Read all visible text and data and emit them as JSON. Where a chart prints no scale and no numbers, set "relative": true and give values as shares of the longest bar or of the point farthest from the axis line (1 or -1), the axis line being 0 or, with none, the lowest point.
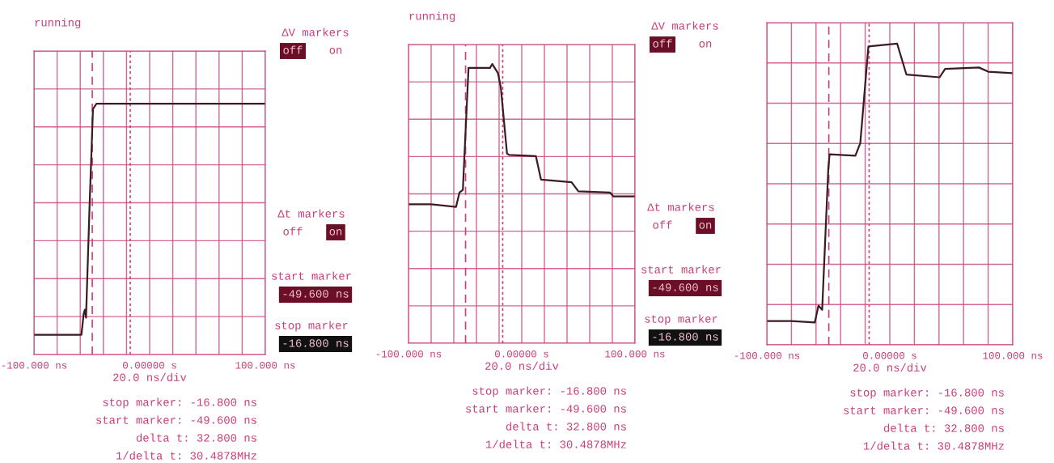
{
  "chart_data": [
    {
      "type": "line",
      "title": "running",
      "xlabel": "20.0 ns/div",
      "relative": true,
      "grid": true,
      "tick_labels": "x",
      "xlim": [
        -100,
        100
      ],
      "xticks": [
        {
          "value": -100,
          "label": "-100.000 ns"
        },
        {
          "value": -80,
          "label": null
        },
        {
          "value": -60,
          "label": null
        },
        {
          "value": -40,
          "label": null
        },
        {
          "value": -20,
          "label": null
        },
        {
          "value": 0,
          "label": "0.00000 s"
        },
        {
          "value": 20,
          "label": null
        },
        {
          "value": 40,
          "label": null
        },
        {
          "value": 60,
          "label": null
        },
        {
          "value": 80,
          "label": null
        },
        {
          "value": 100,
          "label": "100.000 ns"
        }
      ],
      "series": [
        {
          "color": "#3a1c22",
          "x": [
            -100,
            -80,
            -60,
            -59,
            -57,
            -56,
            -55,
            -52,
            -49,
            -46,
            -20,
            20,
            60,
            100
          ],
          "values": [
            -1,
            -1,
            -1,
            -1,
            -0.84,
            -0.81,
            -0.87,
            -0.04,
            0.71,
            0.75,
            0.75,
            0.75,
            0.75,
            0.75
          ]
        }
      ],
      "ref_lines": [
        {
          "axis": "x",
          "value": -49.6,
          "line_style": "dashed",
          "color": "#c8407a"
        },
        {
          "axis": "x",
          "value": -16.8,
          "line_style": "dotted",
          "color": "#c8407a"
        }
      ],
      "annotations": [
        "ΔV markers",
        "off",
        "on",
        "Δt markers",
        "off",
        "on",
        "start marker",
        "-49.600 ns",
        "stop marker",
        "-16.800 ns",
        "stop marker: -16.800 ns",
        "start marker: -49.600 ns",
        "delta t: 32.800 ns",
        "1/delta t: 30.4878MHz"
      ]
    },
    {
      "type": "line",
      "title": "running",
      "xlabel": "20.0 ns/div",
      "relative": true,
      "grid": true,
      "tick_labels": "x",
      "xlim": [
        -100,
        100
      ],
      "xticks": [
        {
          "value": -100,
          "label": "-100.000 ns"
        },
        {
          "value": -80,
          "label": null
        },
        {
          "value": -60,
          "label": null
        },
        {
          "value": -40,
          "label": null
        },
        {
          "value": -20,
          "label": null
        },
        {
          "value": 0,
          "label": "0.00000 s"
        },
        {
          "value": 20,
          "label": null
        },
        {
          "value": 40,
          "label": null
        },
        {
          "value": 60,
          "label": null
        },
        {
          "value": 80,
          "label": null
        },
        {
          "value": 100,
          "label": "100.000 ns"
        }
      ],
      "series": [
        {
          "color": "#3a1c22",
          "x": [
            -100,
            -80,
            -58,
            -55,
            -52,
            -47,
            -28,
            -26,
            -21,
            -18.5,
            -13,
            -11,
            12.5,
            17,
            44,
            50,
            78,
            81,
            100
          ],
          "values": [
            -0.08,
            -0.08,
            -0.1,
            0.01,
            0.03,
            0.97,
            0.97,
            1,
            0.93,
            0.82,
            0.31,
            0.3,
            0.29,
            0.11,
            0.09,
            0.02,
            0.01,
            -0.02,
            -0.02
          ]
        }
      ],
      "ref_lines": [
        {
          "axis": "x",
          "value": -49.6,
          "line_style": "dashed",
          "color": "#c8407a"
        },
        {
          "axis": "x",
          "value": -16.8,
          "line_style": "dotted",
          "color": "#c8407a"
        }
      ],
      "annotations": [
        "ΔV markers",
        "off",
        "on",
        "Δt markers",
        "off",
        "on",
        "start marker",
        "-49.600 ns",
        "stop marker",
        "-16.800 ns",
        "stop marker: -16.800 ns",
        "start marker: -49.600 ns",
        "delta t: 32.800 ns",
        "1/delta t: 30.4878MHz"
      ]
    },
    {
      "type": "line",
      "xlabel": "20.0 ns/div",
      "relative": true,
      "grid": true,
      "tick_labels": "x",
      "xlim": [
        -100,
        100
      ],
      "xticks": [
        {
          "value": -100,
          "label": "-100.000 ns"
        },
        {
          "value": -80,
          "label": null
        },
        {
          "value": -60,
          "label": null
        },
        {
          "value": -40,
          "label": null
        },
        {
          "value": -20,
          "label": null
        },
        {
          "value": 0,
          "label": "0.00000 s"
        },
        {
          "value": 20,
          "label": null
        },
        {
          "value": 40,
          "label": null
        },
        {
          "value": 60,
          "label": null
        },
        {
          "value": 80,
          "label": null
        },
        {
          "value": 100,
          "label": "100.000 ns"
        }
      ],
      "series": [
        {
          "color": "#3a1c22",
          "x": [
            -100,
            -80,
            -61,
            -58,
            -55,
            -50,
            -49,
            -28,
            -24,
            -17.4,
            6,
            13.5,
            40.5,
            45,
            72.5,
            80,
            100
          ],
          "values": [
            -0.98,
            -0.98,
            -0.99,
            -0.87,
            -0.9,
            0.11,
            0.21,
            0.2,
            0.29,
            0.98,
            1,
            0.78,
            0.76,
            0.82,
            0.83,
            0.8,
            0.79
          ]
        }
      ],
      "ref_lines": [
        {
          "axis": "x",
          "value": -49.6,
          "line_style": "dashed",
          "color": "#c8407a"
        },
        {
          "axis": "x",
          "value": -16.8,
          "line_style": "dotted",
          "color": "#c8407a"
        }
      ],
      "annotations": [
        "stop marker: -16.800 ns",
        "start marker: -49.600 ns",
        "delta t: 32.800 ns",
        "1/delta t: 30.4878MHz"
      ]
    }
  ]
}
